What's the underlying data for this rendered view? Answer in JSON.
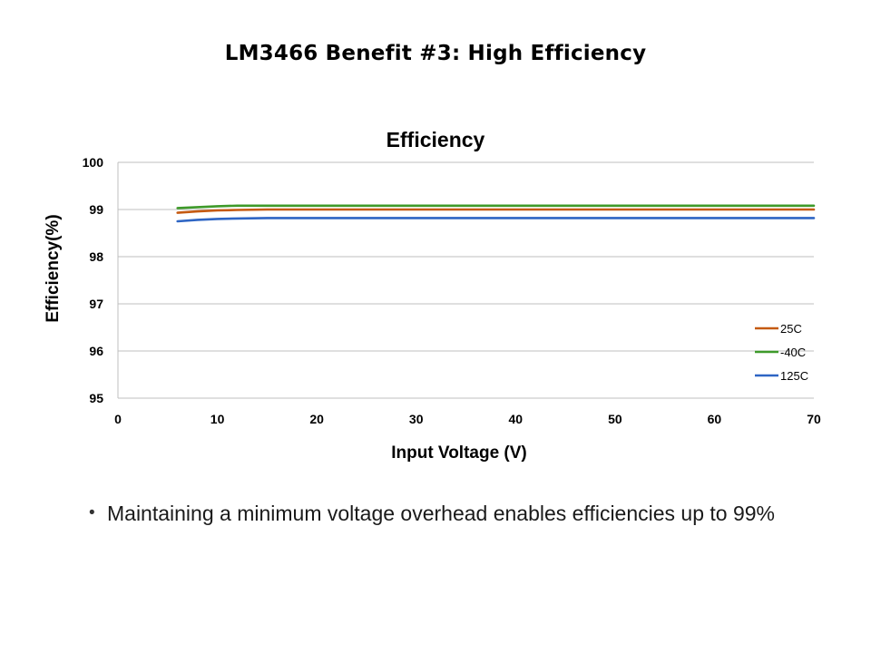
{
  "slide": {
    "title": "LM3466 Benefit #3: High Efficiency",
    "bullets": [
      "Maintaining a minimum voltage overhead enables efficiencies up to 99%"
    ]
  },
  "chart_data": {
    "type": "line",
    "title": "Efficiency",
    "xlabel": "Input Voltage (V)",
    "ylabel": "Efficiency(%)",
    "xlim": [
      0,
      70
    ],
    "ylim": [
      95,
      100
    ],
    "x_ticks": [
      0,
      10,
      20,
      30,
      40,
      50,
      60,
      70
    ],
    "y_ticks": [
      95,
      96,
      97,
      98,
      99,
      100
    ],
    "grid": "horizontal",
    "legend_position": "lower-right",
    "series": [
      {
        "name": "25C",
        "color": "#c55a11",
        "x": [
          6,
          8,
          10,
          12,
          15,
          20,
          30,
          40,
          50,
          60,
          70
        ],
        "y": [
          98.93,
          98.96,
          98.98,
          98.99,
          99.0,
          99.0,
          99.0,
          99.0,
          99.0,
          99.0,
          99.0
        ]
      },
      {
        "name": "-40C",
        "color": "#3e9a2a",
        "x": [
          6,
          8,
          10,
          12,
          15,
          20,
          30,
          40,
          50,
          60,
          70
        ],
        "y": [
          99.03,
          99.05,
          99.07,
          99.08,
          99.08,
          99.08,
          99.08,
          99.08,
          99.08,
          99.08,
          99.08
        ]
      },
      {
        "name": "125C",
        "color": "#2e65c4",
        "x": [
          6,
          8,
          10,
          12,
          15,
          20,
          30,
          40,
          50,
          60,
          70
        ],
        "y": [
          98.75,
          98.78,
          98.8,
          98.81,
          98.82,
          98.82,
          98.82,
          98.82,
          98.82,
          98.82,
          98.82
        ]
      }
    ]
  }
}
